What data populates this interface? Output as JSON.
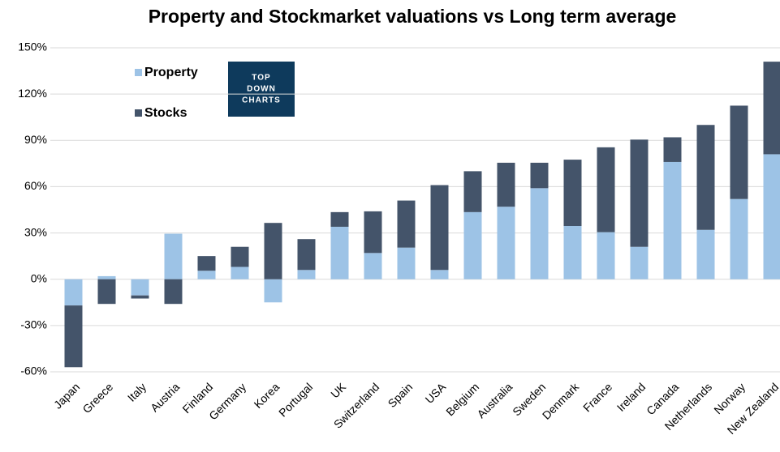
{
  "chart_data": {
    "type": "bar",
    "stacked": true,
    "title": "Property and Stockmarket valuations vs Long term average",
    "logo": [
      "TOP",
      "DOWN",
      "CHARTS"
    ],
    "categories": [
      "Japan",
      "Greece",
      "Italy",
      "Austria",
      "Finland",
      "Germany",
      "Korea",
      "Portugal",
      "UK",
      "Switzerland",
      "Spain",
      "USA",
      "Belgium",
      "Australia",
      "Sweden",
      "Denmark",
      "France",
      "Ireland",
      "Canada",
      "Netherlands",
      "Norway",
      "New Zealand"
    ],
    "series": [
      {
        "name": "Property",
        "color": "#9dc3e6",
        "values": [
          -17,
          2,
          -10.5,
          29.5,
          5.5,
          8,
          -15,
          6,
          34,
          17,
          20.5,
          6,
          43.5,
          47,
          59,
          34.5,
          30.5,
          21,
          76,
          32,
          52,
          81
        ]
      },
      {
        "name": "Stocks",
        "color": "#44546a",
        "values": [
          -40,
          -16,
          -2,
          -16,
          9.5,
          13,
          36.5,
          20,
          9.5,
          27,
          30.5,
          55,
          26.5,
          28.5,
          16.5,
          43,
          55,
          69.5,
          16,
          68,
          60.5,
          60
        ]
      }
    ],
    "ylim": [
      -60,
      150
    ],
    "yticks": [
      {
        "value": -60,
        "label": "-60%"
      },
      {
        "value": -30,
        "label": "-30%"
      },
      {
        "value": 0,
        "label": "0%"
      },
      {
        "value": 30,
        "label": "30%"
      },
      {
        "value": 60,
        "label": "60%"
      },
      {
        "value": 90,
        "label": "90%"
      },
      {
        "value": 120,
        "label": "120%"
      },
      {
        "value": 150,
        "label": "150%"
      }
    ],
    "grid": true
  }
}
